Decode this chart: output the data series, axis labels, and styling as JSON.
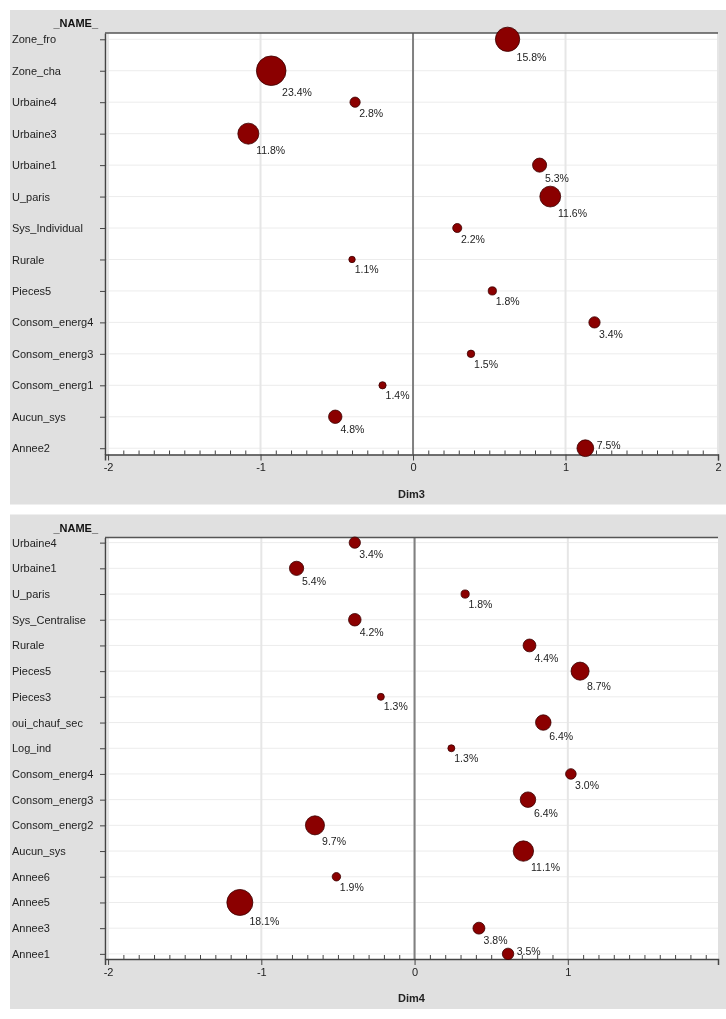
{
  "chart_data": [
    {
      "type": "bubble",
      "orientation": "horizontal",
      "xlabel": "Dim3",
      "ylabel": "_NAME_",
      "categories": [
        "Zone_fro",
        "Zone_cha",
        "Urbaine4",
        "Urbaine3",
        "Urbaine1",
        "U_paris",
        "Sys_Individual",
        "Rurale",
        "Pieces5",
        "Consom_energ4",
        "Consom_energ3",
        "Consom_energ1",
        "Aucun_sys",
        "Annee2"
      ],
      "values": [
        0.62,
        -0.93,
        -0.38,
        -1.08,
        0.83,
        0.9,
        0.29,
        -0.4,
        0.52,
        1.19,
        0.38,
        -0.2,
        -0.51,
        1.13
      ],
      "sizes": [
        15.8,
        23.4,
        2.8,
        11.8,
        5.3,
        11.6,
        2.2,
        1.1,
        1.8,
        3.4,
        1.5,
        1.4,
        4.8,
        7.5
      ],
      "value_labels": [
        "15.8%",
        "23.4%",
        "2.8%",
        "11.8%",
        "5.3%",
        "11.6%",
        "2.2%",
        "1.1%",
        "1.8%",
        "3.4%",
        "1.5%",
        "1.4%",
        "4.8%",
        "7.5%"
      ],
      "color": "#8b0000",
      "xlim": [
        -2.02,
        2
      ],
      "xticks": [
        -2,
        {
          "value": -1.9,
          "label": null
        },
        {
          "value": -1.8,
          "label": null
        },
        {
          "value": -1.7,
          "label": null
        },
        {
          "value": -1.6,
          "label": null
        },
        {
          "value": -1.5,
          "label": null
        },
        {
          "value": -1.4,
          "label": null
        },
        {
          "value": -1.3,
          "label": null
        },
        {
          "value": -1.2,
          "label": null
        },
        {
          "value": -1.1,
          "label": null
        },
        -1,
        {
          "value": -0.9,
          "label": null
        },
        {
          "value": -0.8,
          "label": null
        },
        {
          "value": -0.7,
          "label": null
        },
        {
          "value": -0.6,
          "label": null
        },
        {
          "value": -0.5,
          "label": null
        },
        {
          "value": -0.4,
          "label": null
        },
        {
          "value": -0.3,
          "label": null
        },
        {
          "value": -0.2,
          "label": null
        },
        {
          "value": -0.1,
          "label": null
        },
        0,
        {
          "value": 0.1,
          "label": null
        },
        {
          "value": 0.2,
          "label": null
        },
        {
          "value": 0.3,
          "label": null
        },
        {
          "value": 0.4,
          "label": null
        },
        {
          "value": 0.5,
          "label": null
        },
        {
          "value": 0.6,
          "label": null
        },
        {
          "value": 0.7,
          "label": null
        },
        {
          "value": 0.8,
          "label": null
        },
        {
          "value": 0.9,
          "label": null
        },
        1,
        {
          "value": 1.1,
          "label": null
        },
        {
          "value": 1.2,
          "label": null
        },
        {
          "value": 1.3,
          "label": null
        },
        {
          "value": 1.4,
          "label": null
        },
        {
          "value": 1.5,
          "label": null
        },
        {
          "value": 1.6,
          "label": null
        },
        {
          "value": 1.7,
          "label": null
        },
        {
          "value": 1.8,
          "label": null
        },
        {
          "value": 1.9,
          "label": null
        },
        2
      ],
      "grid": true,
      "ref_lines": [
        {
          "axis": "x",
          "value": 0,
          "color": "#808080"
        }
      ]
    },
    {
      "type": "bubble",
      "orientation": "horizontal",
      "xlabel": "Dim4",
      "ylabel": "_NAME_",
      "categories": [
        "Urbaine4",
        "Urbaine1",
        "U_paris",
        "Sys_Centralise",
        "Rurale",
        "Pieces5",
        "Pieces3",
        "oui_chauf_sec",
        "Log_ind",
        "Consom_energ4",
        "Consom_energ3",
        "Consom_energ2",
        "Aucun_sys",
        "Annee6",
        "Annee5",
        "Annee3",
        "Annee1"
      ],
      "values": [
        -0.39,
        -0.77,
        0.33,
        -0.39,
        0.75,
        1.08,
        -0.22,
        0.84,
        0.24,
        1.02,
        0.74,
        -0.65,
        0.71,
        -0.51,
        -1.14,
        0.42,
        0.61
      ],
      "sizes": [
        3.4,
        5.4,
        1.8,
        4.2,
        4.4,
        8.7,
        1.3,
        6.4,
        1.3,
        3.0,
        6.4,
        9.7,
        11.1,
        1.9,
        18.1,
        3.8,
        3.5
      ],
      "value_labels": [
        "3.4%",
        "5.4%",
        "1.8%",
        "4.2%",
        "4.4%",
        "8.7%",
        "1.3%",
        "6.4%",
        "1.3%",
        "3.0%",
        "6.4%",
        "9.7%",
        "11.1%",
        "1.9%",
        "18.1%",
        "3.8%",
        "3.5%"
      ],
      "color": "#8b0000",
      "xlim": [
        -2.02,
        1.98
      ],
      "xticks": [
        -2,
        {
          "value": -1.9,
          "label": null
        },
        {
          "value": -1.8,
          "label": null
        },
        {
          "value": -1.7,
          "label": null
        },
        {
          "value": -1.6,
          "label": null
        },
        {
          "value": -1.5,
          "label": null
        },
        {
          "value": -1.4,
          "label": null
        },
        {
          "value": -1.3,
          "label": null
        },
        {
          "value": -1.2,
          "label": null
        },
        {
          "value": -1.1,
          "label": null
        },
        -1,
        {
          "value": -0.9,
          "label": null
        },
        {
          "value": -0.8,
          "label": null
        },
        {
          "value": -0.7,
          "label": null
        },
        {
          "value": -0.6,
          "label": null
        },
        {
          "value": -0.5,
          "label": null
        },
        {
          "value": -0.4,
          "label": null
        },
        {
          "value": -0.3,
          "label": null
        },
        {
          "value": -0.2,
          "label": null
        },
        {
          "value": -0.1,
          "label": null
        },
        0,
        {
          "value": 0.1,
          "label": null
        },
        {
          "value": 0.2,
          "label": null
        },
        {
          "value": 0.3,
          "label": null
        },
        {
          "value": 0.4,
          "label": null
        },
        {
          "value": 0.5,
          "label": null
        },
        {
          "value": 0.6,
          "label": null
        },
        {
          "value": 0.7,
          "label": null
        },
        {
          "value": 0.8,
          "label": null
        },
        {
          "value": 0.9,
          "label": null
        },
        1,
        {
          "value": 1.1,
          "label": null
        },
        {
          "value": 1.2,
          "label": null
        },
        {
          "value": 1.3,
          "label": null
        },
        {
          "value": 1.4,
          "label": null
        },
        {
          "value": 1.5,
          "label": null
        },
        {
          "value": 1.6,
          "label": null
        },
        {
          "value": 1.7,
          "label": null
        },
        {
          "value": 1.8,
          "label": null
        },
        {
          "value": 1.9,
          "label": null
        }
      ],
      "grid": true,
      "ref_lines": [
        {
          "axis": "x",
          "value": 0,
          "color": "#808080"
        }
      ]
    }
  ]
}
